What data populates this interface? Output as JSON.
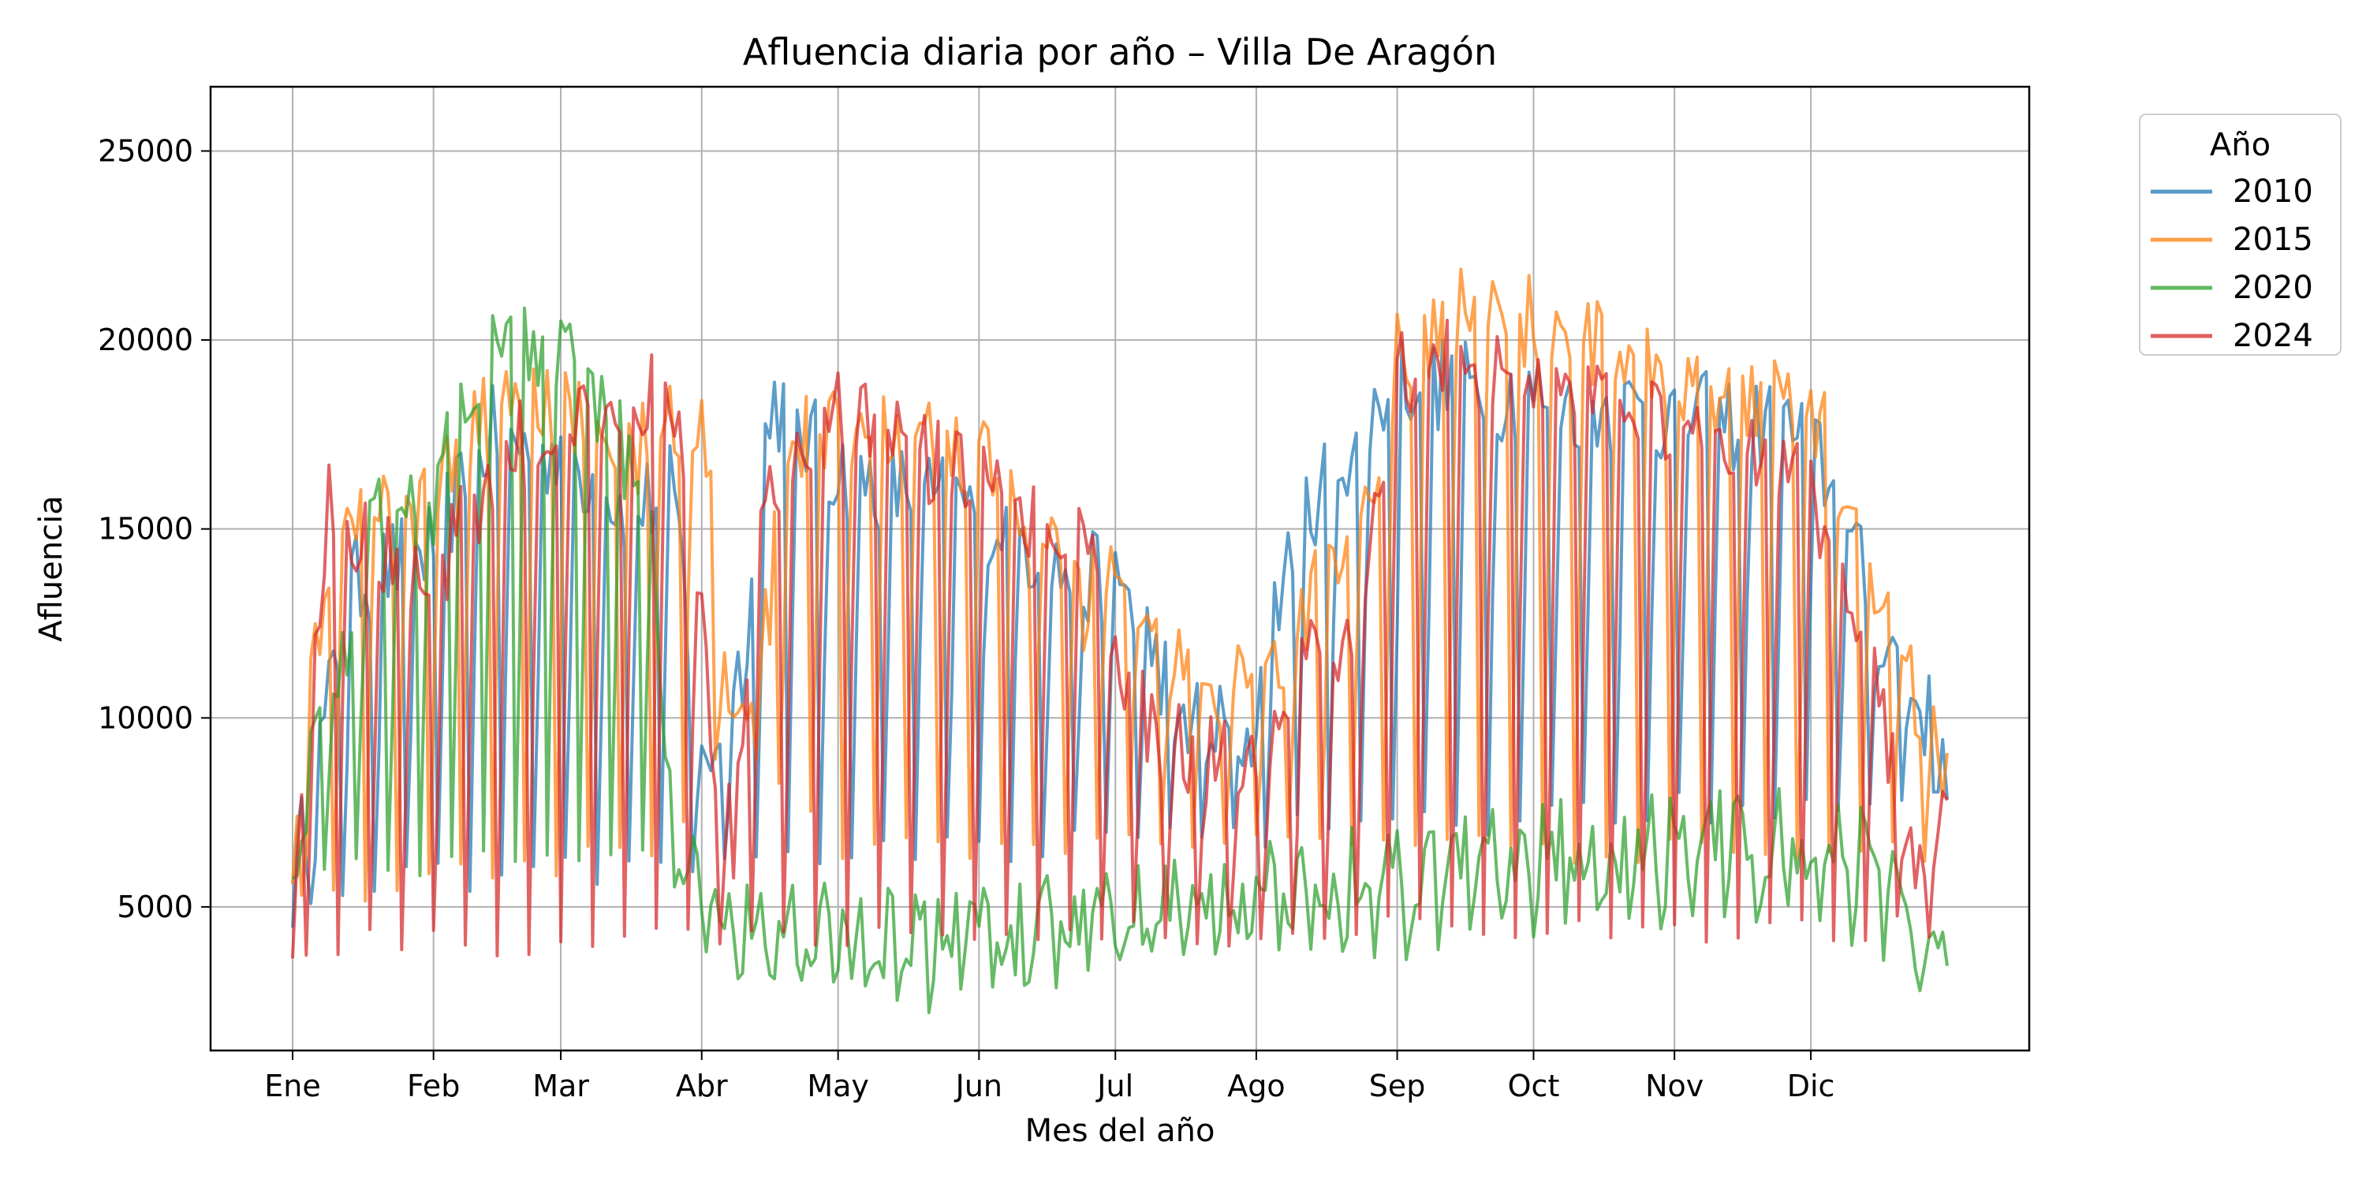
{
  "chart_data": {
    "type": "line",
    "title": "Afluencia diaria por año – Villa De Aragón",
    "xlabel": "Mes del año",
    "ylabel": "Afluencia",
    "x_range": [
      1,
      365
    ],
    "ylim": [
      1200,
      26700
    ],
    "grid": true,
    "legend_title": "Año",
    "legend_placement": "outside-top-right",
    "x_ticks": [
      {
        "day": 1,
        "label": "Ene"
      },
      {
        "day": 32,
        "label": "Feb"
      },
      {
        "day": 60,
        "label": "Mar"
      },
      {
        "day": 91,
        "label": "Abr"
      },
      {
        "day": 121,
        "label": "May"
      },
      {
        "day": 152,
        "label": "Jun"
      },
      {
        "day": 182,
        "label": "Jul"
      },
      {
        "day": 213,
        "label": "Ago"
      },
      {
        "day": 244,
        "label": "Sep"
      },
      {
        "day": 274,
        "label": "Oct"
      },
      {
        "day": 305,
        "label": "Nov"
      },
      {
        "day": 335,
        "label": "Dic"
      }
    ],
    "y_ticks": [
      5000,
      10000,
      15000,
      20000,
      25000
    ],
    "series": [
      {
        "name": "2010",
        "color": "#1f77b4",
        "profile": [
          [
            1,
            5500
          ],
          [
            14,
            13500
          ],
          [
            31,
            14500
          ],
          [
            45,
            17500
          ],
          [
            60,
            17000
          ],
          [
            75,
            15500
          ],
          [
            85,
            16000
          ],
          [
            91,
            8500
          ],
          [
            100,
            11500
          ],
          [
            106,
            18500
          ],
          [
            121,
            16500
          ],
          [
            152,
            15500
          ],
          [
            175,
            13500
          ],
          [
            182,
            14000
          ],
          [
            197,
            10000
          ],
          [
            212,
            9500
          ],
          [
            221,
            15000
          ],
          [
            244,
            19000
          ],
          [
            274,
            18500
          ],
          [
            305,
            18000
          ],
          [
            335,
            17500
          ],
          [
            350,
            12500
          ],
          [
            365,
            9000
          ]
        ],
        "low": [
          [
            1,
            5500
          ],
          [
            365,
            8000
          ]
        ],
        "phase": 0
      },
      {
        "name": "2015",
        "color": "#ff7f0e",
        "profile": [
          [
            1,
            6500
          ],
          [
            10,
            15000
          ],
          [
            31,
            15500
          ],
          [
            50,
            19000
          ],
          [
            75,
            17000
          ],
          [
            91,
            18500
          ],
          [
            96,
            10500
          ],
          [
            103,
            10000
          ],
          [
            110,
            17500
          ],
          [
            152,
            17000
          ],
          [
            175,
            13000
          ],
          [
            182,
            14000
          ],
          [
            197,
            11000
          ],
          [
            214,
            10500
          ],
          [
            222,
            12500
          ],
          [
            235,
            15000
          ],
          [
            244,
            19500
          ],
          [
            260,
            21000
          ],
          [
            305,
            19000
          ],
          [
            335,
            18500
          ],
          [
            350,
            13500
          ],
          [
            365,
            8000
          ]
        ],
        "low": [
          [
            1,
            5200
          ],
          [
            85,
            6500
          ],
          [
            100,
            9800
          ],
          [
            108,
            8000
          ],
          [
            120,
            6500
          ],
          [
            365,
            6500
          ]
        ],
        "phase": 2
      },
      {
        "name": "2020",
        "color": "#2ca02c",
        "profile": [
          [
            1,
            6500
          ],
          [
            20,
            15500
          ],
          [
            31,
            15500
          ],
          [
            45,
            20000
          ],
          [
            60,
            19500
          ],
          [
            70,
            18000
          ],
          [
            80,
            15000
          ],
          [
            84,
            8000
          ],
          [
            88,
            6500
          ],
          [
            95,
            5000
          ],
          [
            105,
            4500
          ],
          [
            140,
            4200
          ],
          [
            182,
            4800
          ],
          [
            213,
            5500
          ],
          [
            244,
            6200
          ],
          [
            274,
            6500
          ],
          [
            305,
            6700
          ],
          [
            335,
            7000
          ],
          [
            350,
            6200
          ],
          [
            360,
            4000
          ],
          [
            365,
            5800
          ]
        ],
        "low": [
          [
            1,
            6000
          ],
          [
            80,
            6500
          ],
          [
            86,
            5000
          ],
          [
            95,
            3800
          ],
          [
            105,
            2800
          ],
          [
            140,
            2600
          ],
          [
            182,
            3600
          ],
          [
            213,
            4100
          ],
          [
            244,
            3800
          ],
          [
            274,
            4400
          ],
          [
            305,
            4800
          ],
          [
            335,
            5000
          ],
          [
            355,
            3000
          ],
          [
            365,
            3200
          ]
        ],
        "phase": 4
      },
      {
        "name": "2024",
        "color": "#d62728",
        "profile": [
          [
            1,
            4200
          ],
          [
            9,
            15500
          ],
          [
            15,
            15000
          ],
          [
            31,
            13500
          ],
          [
            45,
            16500
          ],
          [
            60,
            18000
          ],
          [
            80,
            18500
          ],
          [
            88,
            17000
          ],
          [
            93,
            9500
          ],
          [
            98,
            6500
          ],
          [
            105,
            15500
          ],
          [
            121,
            18000
          ],
          [
            152,
            16000
          ],
          [
            175,
            15000
          ],
          [
            182,
            11000
          ],
          [
            197,
            9000
          ],
          [
            212,
            8800
          ],
          [
            222,
            11000
          ],
          [
            235,
            12500
          ],
          [
            243,
            19000
          ],
          [
            260,
            19500
          ],
          [
            305,
            18000
          ],
          [
            335,
            16000
          ],
          [
            344,
            13500
          ],
          [
            358,
            5500
          ],
          [
            365,
            7500
          ]
        ],
        "low": [
          [
            1,
            4000
          ],
          [
            365,
            4500
          ]
        ],
        "phase": 1
      }
    ]
  }
}
